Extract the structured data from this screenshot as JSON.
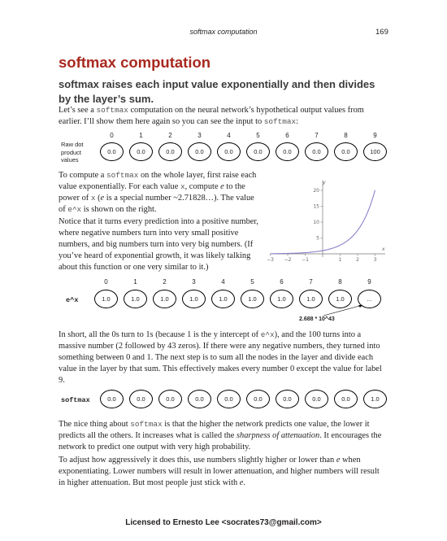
{
  "header": {
    "title": "softmax computation",
    "page_number": "169"
  },
  "heading": "softmax computation",
  "subheading": "softmax raises each input value exponentially and then divides by the layer’s sum.",
  "intro": {
    "t1": "Let’s see a ",
    "code1": "softmax",
    "t2": " computation on the neural network’s hypothetical output values from earlier. I’ll show them here again so you can see the input to ",
    "code2": "softmax",
    "t3": ":"
  },
  "raw_row": {
    "label": "Raw dot product values",
    "indices": [
      "0",
      "1",
      "2",
      "3",
      "4",
      "5",
      "6",
      "7",
      "8",
      "9"
    ],
    "values": [
      "0.0",
      "0.0",
      "0.0",
      "0.0",
      "0.0",
      "0.0",
      "0.0",
      "0.0",
      "0.0",
      "100"
    ]
  },
  "exp_para1": {
    "t1": "To compute a ",
    "code1": "softmax",
    "t2": " on the whole layer, first raise each value exponentially. For each value ",
    "code2": "x",
    "t3": ", compute ",
    "em1": "e",
    "t4": " to the power of ",
    "code3": "x",
    "t5": " (",
    "em2": "e",
    "t6": " is a special number ~2.71828…). The value of ",
    "code4": "e^x",
    "t7": " is shown on the right."
  },
  "exp_para2": "Notice that it turns every prediction into a positive number, where negative numbers turn into very small positive numbers, and big numbers turn into very big numbers. (If you’ve heard of exponential growth, it was likely talking about this function or one very similar to it.)",
  "exp_chart": {
    "x_label": "x",
    "y_label": "y",
    "x_ticks": [
      "−3",
      "−2",
      "−1",
      "1",
      "2",
      "3"
    ],
    "y_ticks": [
      "5",
      "10",
      "15",
      "20"
    ],
    "curve_color": "#8b80c8"
  },
  "exp_row": {
    "label": "e^x",
    "indices": [
      "0",
      "1",
      "2",
      "3",
      "4",
      "5",
      "6",
      "7",
      "8",
      "9"
    ],
    "values": [
      "1.0",
      "1.0",
      "1.0",
      "1.0",
      "1.0",
      "1.0",
      "1.0",
      "1.0",
      "1.0",
      "..."
    ],
    "note": "2.688 * 10^43"
  },
  "sum_para": {
    "t1": "In short, all the 0s turn to 1s (because 1 is the y intercept of ",
    "code1": "e^x",
    "t2": "), and the 100 turns into a massive number (2 followed by 43 zeros). If there were any negative numbers, they turned into something between 0 and 1. The next step is to sum all the nodes in the layer and divide each value in the layer by that sum. This effectively makes every number 0 except the value for label 9."
  },
  "softmax_row": {
    "label": "softmax",
    "values": [
      "0.0",
      "0.0",
      "0.0",
      "0.0",
      "0.0",
      "0.0",
      "0.0",
      "0.0",
      "0.0",
      "1.0"
    ]
  },
  "nice_para": {
    "t1": "The nice thing about ",
    "code1": "softmax",
    "t2": " is that the higher the network predicts one value, the lower it predicts all the others. It increases what is called the ",
    "em1": "sharpness of attenuation",
    "t3": ". It encourages the network to predict one output with very high probability."
  },
  "last_para": {
    "t1": "To adjust how aggressively it does this, use numbers slightly higher or lower than ",
    "em1": "e",
    "t2": " when exponentiating. Lower numbers will result in lower attenuation, and higher numbers will result in higher attenuation. But most people just stick with ",
    "em2": "e",
    "t3": "."
  },
  "footer": "Licensed to Ernesto Lee <socrates73@gmail.com>"
}
